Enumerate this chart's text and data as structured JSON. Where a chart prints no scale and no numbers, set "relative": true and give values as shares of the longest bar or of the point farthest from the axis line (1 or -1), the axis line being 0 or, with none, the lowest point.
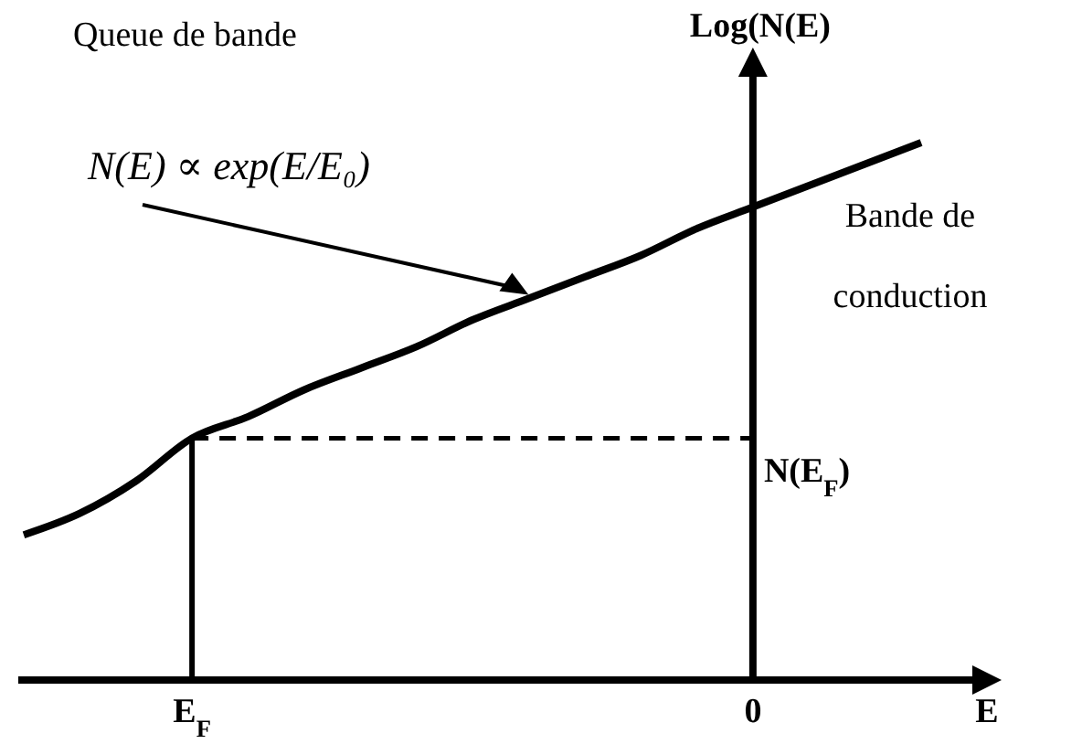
{
  "chart_data": {
    "type": "line",
    "xlabel": "E",
    "ylabel": "Log(N(E)",
    "relative": true,
    "line_style": "solid",
    "categories": [
      null,
      null,
      null,
      "E$_{F}$",
      null,
      null,
      null,
      null,
      null,
      null,
      null,
      null,
      null,
      "0",
      null,
      null,
      null
    ],
    "series": [
      {
        "color": "#000000",
        "values": [
          0.27,
          0.31,
          0.37,
          0.45,
          0.49,
          0.54,
          0.58,
          0.62,
          0.67,
          0.71,
          0.75,
          0.79,
          0.84,
          0.88,
          0.92,
          0.96,
          1
        ]
      }
    ],
    "ref_lines": [
      {
        "axis": "x",
        "value": "E$_{F}$",
        "line_style": "solid"
      },
      {
        "axis": "y",
        "value": 0.45,
        "label": "N(E$_{F}$)",
        "line_style": "dashed"
      }
    ],
    "annotations": [
      "Queue de bande",
      "N(E) ∝ exp(E/E₀)",
      "Bande de conduction"
    ]
  }
}
